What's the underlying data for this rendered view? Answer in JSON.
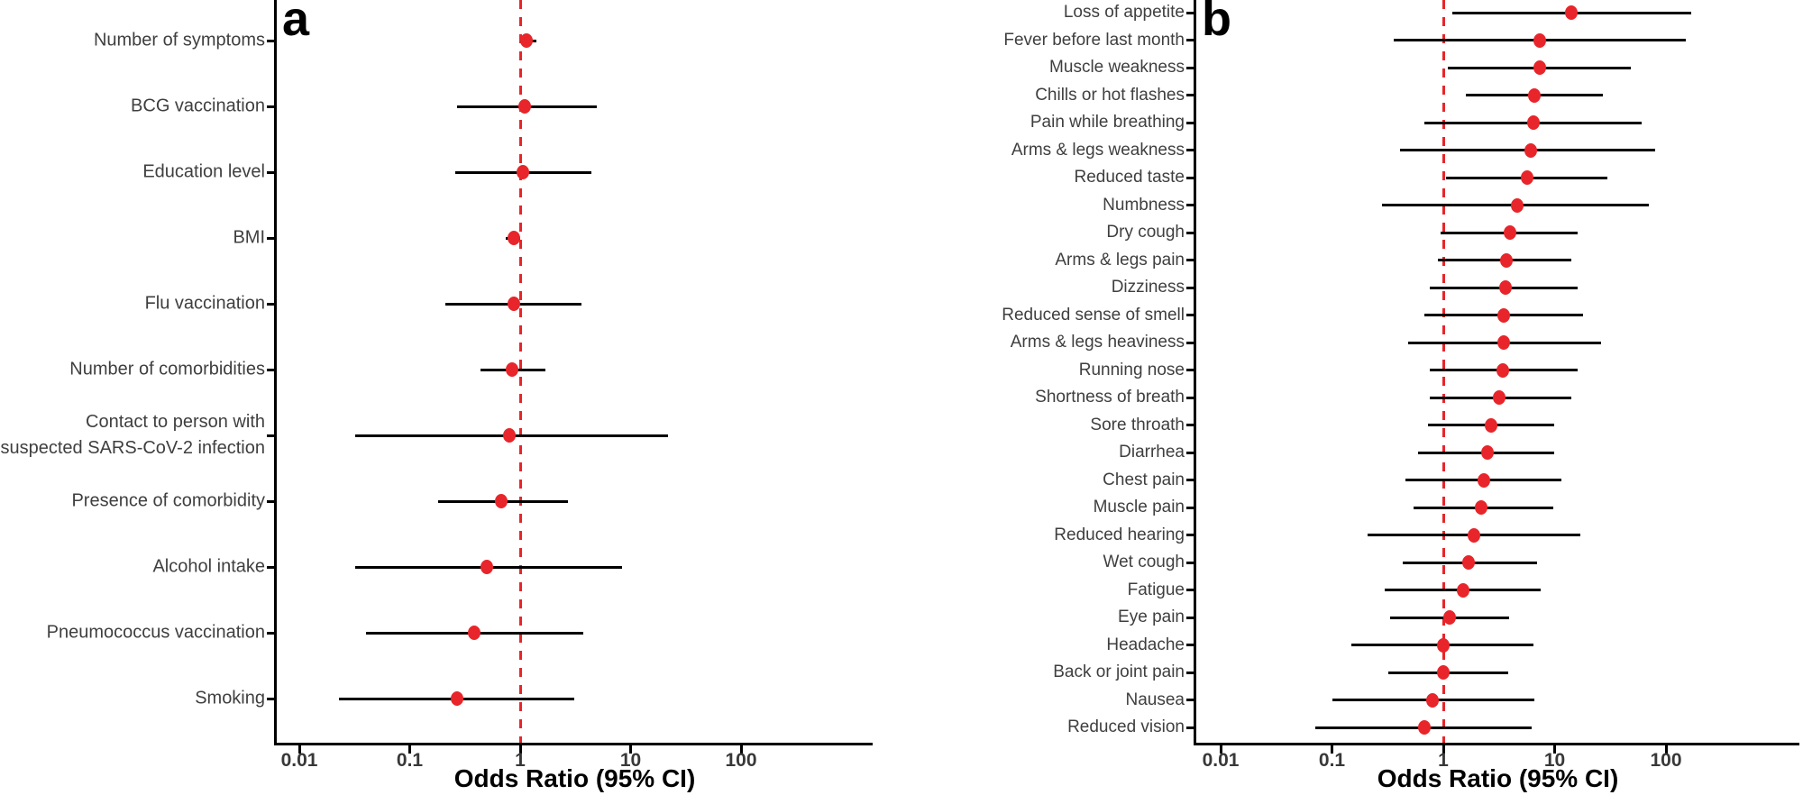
{
  "colors": {
    "point": "#E8252A",
    "reference_line": "#E8252A",
    "ci_line": "#000000",
    "axis": "#000000",
    "label_text": "#3F3F3F",
    "tick_text": "#383838",
    "title_text": "#000000"
  },
  "chart_data": [
    {
      "type": "scatter",
      "variant": "forest-plot",
      "panel_label": "a",
      "xlabel": "Odds Ratio (95% CI)",
      "x_scale": "log10",
      "x_ticks": [
        0.01,
        0.1,
        1,
        10,
        100
      ],
      "x_tick_labels": [
        "0.01",
        "0.1",
        "1",
        "10",
        "100"
      ],
      "x_range_approx": [
        0.005,
        1600
      ],
      "reference_line_x": 1,
      "grid": false,
      "legend": null,
      "points": [
        {
          "label": "Number of symptoms",
          "or": 1.15,
          "ci_low": 1.0,
          "ci_high": 1.4
        },
        {
          "label": "BCG vaccination",
          "or": 1.1,
          "ci_low": 0.27,
          "ci_high": 4.9
        },
        {
          "label": "Education level",
          "or": 1.05,
          "ci_low": 0.26,
          "ci_high": 4.4
        },
        {
          "label": "BMI",
          "or": 0.87,
          "ci_low": 0.74,
          "ci_high": 1.0
        },
        {
          "label": "Flu vaccination",
          "or": 0.87,
          "ci_low": 0.21,
          "ci_high": 3.6
        },
        {
          "label": "Number of comorbidities",
          "or": 0.85,
          "ci_low": 0.44,
          "ci_high": 1.7
        },
        {
          "label": "Contact to person with\nsuspected SARS-CoV-2 infection",
          "or": 0.8,
          "ci_low": 0.032,
          "ci_high": 22
        },
        {
          "label": "Presence of comorbidity",
          "or": 0.68,
          "ci_low": 0.18,
          "ci_high": 2.7
        },
        {
          "label": "Alcohol intake",
          "or": 0.5,
          "ci_low": 0.032,
          "ci_high": 8.4
        },
        {
          "label": "Pneumococcus vaccination",
          "or": 0.38,
          "ci_low": 0.04,
          "ci_high": 3.7
        },
        {
          "label": "Smoking",
          "or": 0.27,
          "ci_low": 0.023,
          "ci_high": 3.1
        }
      ]
    },
    {
      "type": "scatter",
      "variant": "forest-plot",
      "panel_label": "b",
      "xlabel": "Odds Ratio (95% CI)",
      "x_scale": "log10",
      "x_ticks": [
        0.01,
        0.1,
        1,
        10,
        100
      ],
      "x_tick_labels": [
        "0.01",
        "0.1",
        "1",
        "10",
        "100"
      ],
      "x_range_approx": [
        0.005,
        1500
      ],
      "reference_line_x": 1,
      "grid": false,
      "legend": null,
      "points": [
        {
          "label": "Loss of appetite",
          "or": 14,
          "ci_low": 1.2,
          "ci_high": 170
        },
        {
          "label": "Fever before last month",
          "or": 7.4,
          "ci_low": 0.36,
          "ci_high": 150
        },
        {
          "label": "Muscle weakness",
          "or": 7.3,
          "ci_low": 1.1,
          "ci_high": 48
        },
        {
          "label": "Chills or hot flashes",
          "or": 6.6,
          "ci_low": 1.6,
          "ci_high": 27
        },
        {
          "label": "Pain while breathing",
          "or": 6.5,
          "ci_low": 0.68,
          "ci_high": 60
        },
        {
          "label": "Arms & legs weakness",
          "or": 6.1,
          "ci_low": 0.41,
          "ci_high": 80
        },
        {
          "label": "Reduced taste",
          "or": 5.7,
          "ci_low": 1.05,
          "ci_high": 30
        },
        {
          "label": "Numbness",
          "or": 4.6,
          "ci_low": 0.28,
          "ci_high": 70
        },
        {
          "label": "Dry cough",
          "or": 4.0,
          "ci_low": 0.95,
          "ci_high": 16
        },
        {
          "label": "Arms & legs pain",
          "or": 3.7,
          "ci_low": 0.9,
          "ci_high": 14
        },
        {
          "label": "Dizziness",
          "or": 3.6,
          "ci_low": 0.75,
          "ci_high": 16
        },
        {
          "label": "Reduced sense of smell",
          "or": 3.5,
          "ci_low": 0.68,
          "ci_high": 18
        },
        {
          "label": "Arms & legs heaviness",
          "or": 3.5,
          "ci_low": 0.48,
          "ci_high": 26
        },
        {
          "label": "Running nose",
          "or": 3.4,
          "ci_low": 0.75,
          "ci_high": 16
        },
        {
          "label": "Shortness of breath",
          "or": 3.2,
          "ci_low": 0.75,
          "ci_high": 14
        },
        {
          "label": "Sore throath",
          "or": 2.7,
          "ci_low": 0.73,
          "ci_high": 10
        },
        {
          "label": "Diarrhea",
          "or": 2.5,
          "ci_low": 0.59,
          "ci_high": 10
        },
        {
          "label": "Chest pain",
          "or": 2.3,
          "ci_low": 0.46,
          "ci_high": 11.5
        },
        {
          "label": "Muscle pain",
          "or": 2.2,
          "ci_low": 0.54,
          "ci_high": 9.7
        },
        {
          "label": "Reduced hearing",
          "or": 1.9,
          "ci_low": 0.21,
          "ci_high": 17
        },
        {
          "label": "Wet cough",
          "or": 1.7,
          "ci_low": 0.43,
          "ci_high": 7
        },
        {
          "label": "Fatigue",
          "or": 1.5,
          "ci_low": 0.3,
          "ci_high": 7.5
        },
        {
          "label": "Eye pain",
          "or": 1.15,
          "ci_low": 0.33,
          "ci_high": 3.9
        },
        {
          "label": "Headache",
          "or": 1.0,
          "ci_low": 0.15,
          "ci_high": 6.4
        },
        {
          "label": "Back or joint pain",
          "or": 1.0,
          "ci_low": 0.32,
          "ci_high": 3.8
        },
        {
          "label": "Nausea",
          "or": 0.8,
          "ci_low": 0.1,
          "ci_high": 6.6
        },
        {
          "label": "Reduced vision",
          "or": 0.67,
          "ci_low": 0.071,
          "ci_high": 6.2
        }
      ]
    }
  ]
}
